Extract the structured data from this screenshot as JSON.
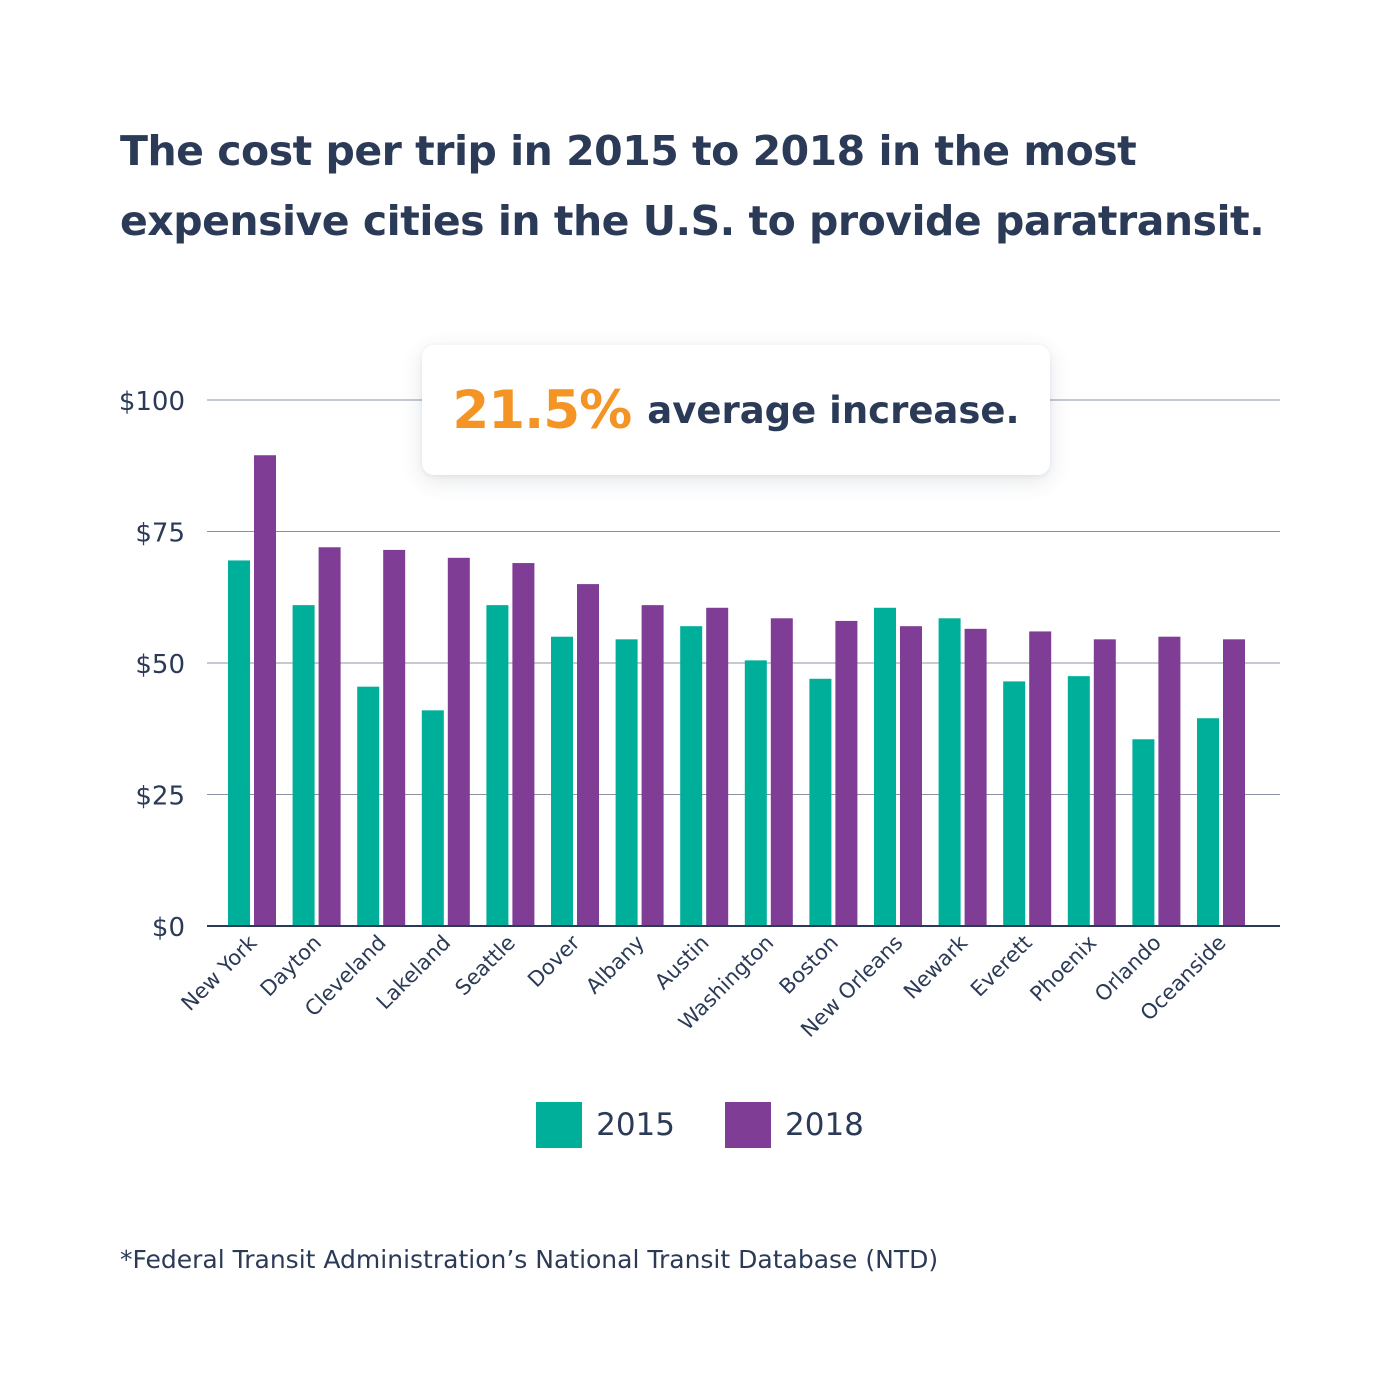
{
  "title": "The cost per trip in 2015 to 2018 in the most expensive cities in the U.S. to provide paratransit.",
  "callout": {
    "value": "21.5%",
    "text": "average increase."
  },
  "footnote": "*Federal Transit Administration’s National Transit Database (NTD)",
  "colors": {
    "series_2015": "#00af9a",
    "series_2018": "#7f3d96",
    "accent": "#f39425",
    "text": "#2b3a57"
  },
  "chart_data": {
    "type": "bar",
    "categories": [
      "New York",
      "Dayton",
      "Cleveland",
      "Lakeland",
      "Seattle",
      "Dover",
      "Albany",
      "Austin",
      "Washington",
      "Boston",
      "New Orleans",
      "Newark",
      "Everett",
      "Phoenix",
      "Orlando",
      "Oceanside"
    ],
    "series": [
      {
        "name": "2015",
        "values": [
          69.5,
          61,
          45.5,
          41,
          61,
          55,
          54.5,
          57,
          50.5,
          47,
          60.5,
          58.5,
          46.5,
          47.5,
          35.5,
          39.5
        ]
      },
      {
        "name": "2018",
        "values": [
          89.5,
          72,
          71.5,
          70,
          69,
          65,
          61,
          60.5,
          58.5,
          58,
          57,
          56.5,
          56,
          54.5,
          55,
          54.5
        ]
      }
    ],
    "yticks": [
      "$0",
      "$25",
      "$50",
      "$75",
      "$100"
    ],
    "ytick_values": [
      0,
      25,
      50,
      75,
      100
    ],
    "ylim": [
      0,
      100
    ],
    "grid": true,
    "legend": "bottom-center"
  }
}
